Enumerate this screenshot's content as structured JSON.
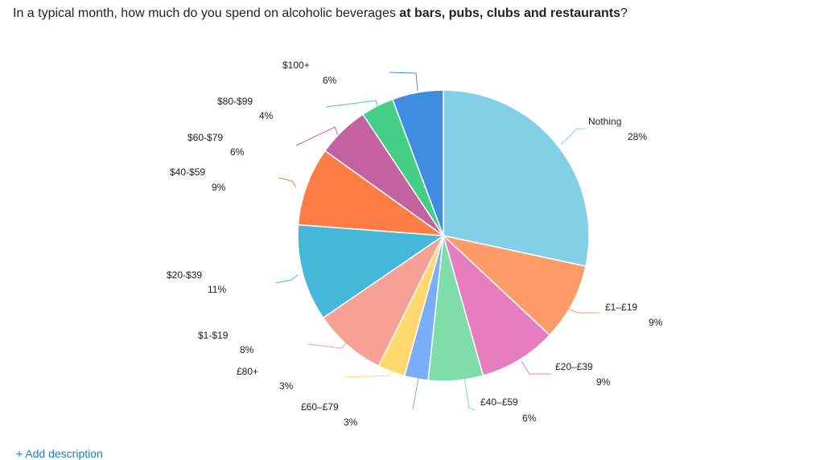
{
  "question": {
    "prefix": "In a typical month, how much do you spend on alcoholic beverages ",
    "bold": "at bars, pubs, clubs and restaurants",
    "suffix": "?"
  },
  "chart_data": {
    "type": "pie",
    "slices": [
      {
        "label": "Nothing",
        "pct_label": "28%",
        "value": 28,
        "color": "#82cfe6"
      },
      {
        "label": "£1–£19",
        "pct_label": "9%",
        "value": 8.5,
        "color": "#fe9c69"
      },
      {
        "label": "£20–£39",
        "pct_label": "9%",
        "value": 8.5,
        "color": "#e57dbf"
      },
      {
        "label": "£40–£59",
        "pct_label": "6%",
        "value": 6,
        "color": "#7fdcab"
      },
      {
        "label": "£60–£79",
        "pct_label": "3%",
        "value": 2.6,
        "color": "#79aefb"
      },
      {
        "label": "£80+",
        "pct_label": "3%",
        "value": 3,
        "color": "#ffd86e"
      },
      {
        "label": "$1-$19",
        "pct_label": "8%",
        "value": 8,
        "color": "#f7a095"
      },
      {
        "label": "$20-$39",
        "pct_label": "11%",
        "value": 10.6,
        "color": "#45b7d9"
      },
      {
        "label": "$40-$59",
        "pct_label": "9%",
        "value": 8.6,
        "color": "#fe7c45"
      },
      {
        "label": "$60-$79",
        "pct_label": "6%",
        "value": 5.7,
        "color": "#c461a1"
      },
      {
        "label": "$80-$99",
        "pct_label": "4%",
        "value": 3.6,
        "color": "#45cf86"
      },
      {
        "label": "$100+",
        "pct_label": "6%",
        "value": 5.6,
        "color": "#3f8de0"
      }
    ]
  },
  "footer": {
    "add_description": "+ Add description"
  }
}
